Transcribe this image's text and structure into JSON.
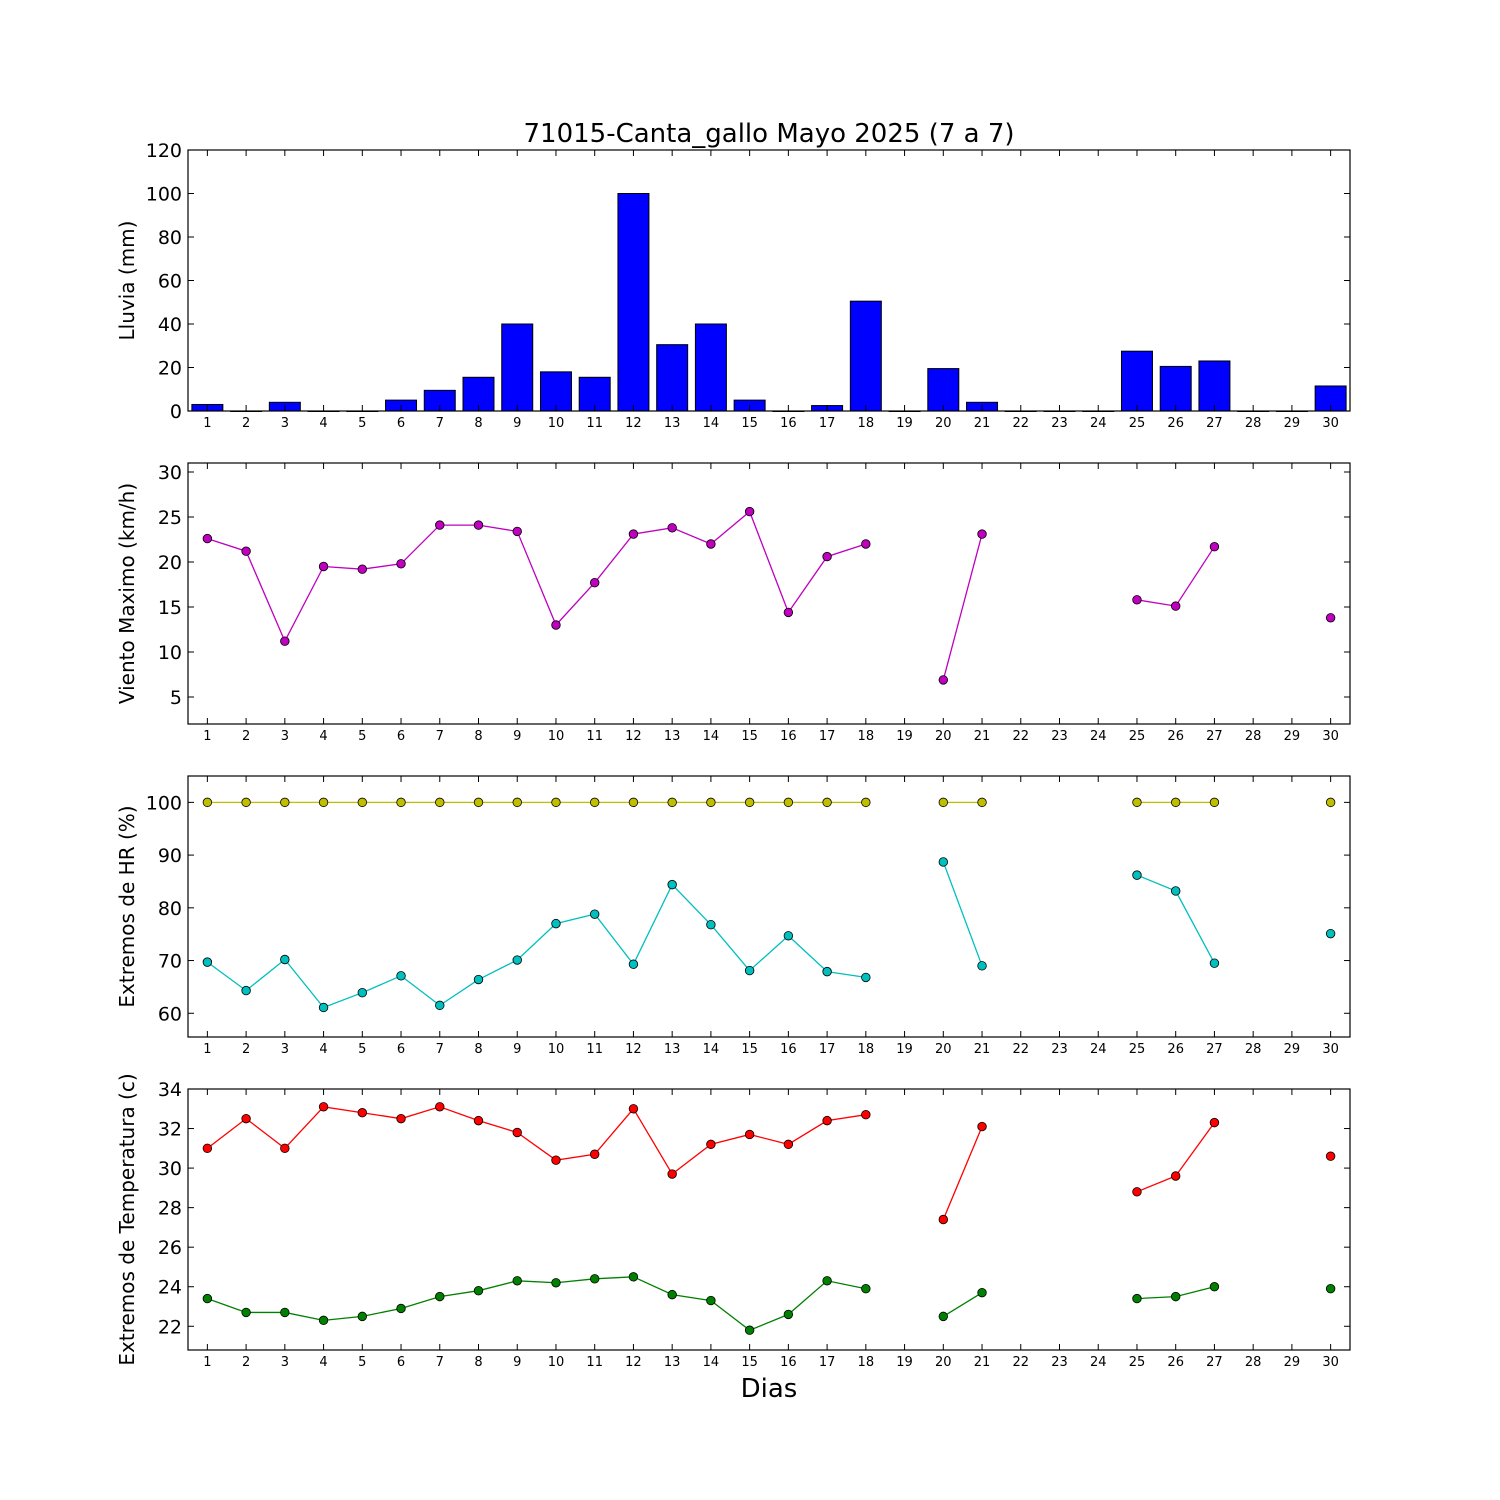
{
  "chart_data": {
    "title": "71015-Canta_gallo Mayo 2025  (7 a 7)",
    "xlabel": "Dias",
    "x": [
      1,
      2,
      3,
      4,
      5,
      6,
      7,
      8,
      9,
      10,
      11,
      12,
      13,
      14,
      15,
      16,
      17,
      18,
      19,
      20,
      21,
      22,
      23,
      24,
      25,
      26,
      27,
      28,
      29,
      30
    ],
    "xlim": [
      0.5,
      30.5
    ],
    "panels": [
      {
        "id": "rain",
        "type": "bar",
        "ylabel": "Lluvia (mm)",
        "ylim": [
          0,
          120
        ],
        "yticks": [
          0,
          20,
          40,
          60,
          80,
          100,
          120
        ],
        "series": [
          {
            "color": "#0000ff",
            "values": [
              3,
              0,
              4,
              0,
              0,
              5,
              9.5,
              15.5,
              40,
              18,
              15.5,
              100,
              30.5,
              40,
              5,
              0,
              2.5,
              50.5,
              0,
              19.5,
              4,
              0,
              0,
              0,
              27.5,
              20.5,
              23,
              0,
              0,
              11.5
            ]
          }
        ]
      },
      {
        "id": "wind",
        "type": "line",
        "ylabel": "Viento Maximo (km/h)",
        "ylim": [
          2,
          31
        ],
        "yticks": [
          5,
          10,
          15,
          20,
          25,
          30
        ],
        "series": [
          {
            "color": "#bf00bf",
            "values": [
              22.6,
              21.2,
              11.2,
              19.5,
              19.2,
              19.8,
              24.1,
              24.1,
              23.4,
              13,
              17.7,
              23.1,
              23.8,
              22,
              25.6,
              14.4,
              20.6,
              22,
              null,
              6.9,
              23.1,
              null,
              null,
              null,
              15.8,
              15.1,
              21.7,
              null,
              null,
              13.8
            ]
          }
        ]
      },
      {
        "id": "hr",
        "type": "line",
        "ylabel": "Extremos de HR (%)",
        "ylim": [
          55.5,
          105
        ],
        "yticks": [
          60,
          70,
          80,
          90,
          100
        ],
        "series": [
          {
            "color": "#bfbf00",
            "values": [
              100,
              100,
              100,
              100,
              100,
              100,
              100,
              100,
              100,
              100,
              100,
              100,
              100,
              100,
              100,
              100,
              100,
              100,
              null,
              100,
              100,
              null,
              null,
              null,
              100,
              100,
              100,
              null,
              null,
              100
            ]
          },
          {
            "color": "#00bfbf",
            "values": [
              69.7,
              64.3,
              70.2,
              61.1,
              63.9,
              67.1,
              61.5,
              66.4,
              70.1,
              77,
              78.8,
              69.3,
              84.4,
              76.8,
              68.1,
              74.7,
              67.9,
              66.8,
              null,
              88.7,
              69,
              null,
              null,
              null,
              86.2,
              83.2,
              69.5,
              null,
              null,
              75.1
            ]
          }
        ]
      },
      {
        "id": "temp",
        "type": "line",
        "ylabel": "Extremos de Temperatura (c)",
        "ylim": [
          20.8,
          34
        ],
        "yticks": [
          22,
          24,
          26,
          28,
          30,
          32,
          34
        ],
        "series": [
          {
            "color": "#ff0000",
            "values": [
              31,
              32.5,
              31,
              33.1,
              32.8,
              32.5,
              33.1,
              32.4,
              31.8,
              30.4,
              30.7,
              33,
              29.7,
              31.2,
              31.7,
              31.2,
              32.4,
              32.7,
              null,
              27.4,
              32.1,
              null,
              null,
              null,
              28.8,
              29.6,
              32.3,
              null,
              null,
              30.6
            ]
          },
          {
            "color": "#008000",
            "values": [
              23.4,
              22.7,
              22.7,
              22.3,
              22.5,
              22.9,
              23.5,
              23.8,
              24.3,
              24.2,
              24.4,
              24.5,
              23.6,
              23.3,
              21.8,
              22.6,
              24.3,
              23.9,
              null,
              22.5,
              23.7,
              null,
              null,
              null,
              23.4,
              23.5,
              24,
              null,
              null,
              23.9
            ]
          }
        ]
      }
    ]
  }
}
